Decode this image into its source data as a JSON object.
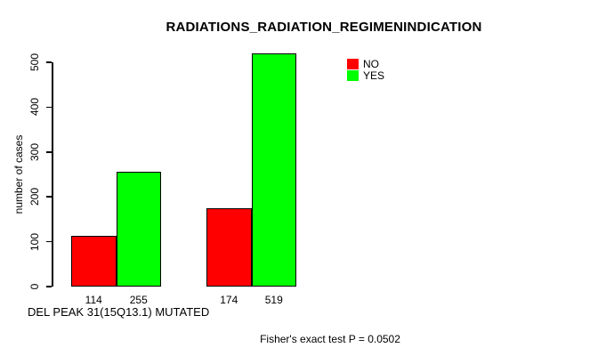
{
  "title": "RADIATIONS_RADIATION_REGIMENINDICATION",
  "xlabel": "DEL PEAK 31(15Q13.1) MUTATED",
  "footnote": "Fisher's exact test P = 0.0502",
  "chart_data": {
    "type": "bar",
    "title": "RADIATIONS_RADIATION_REGIMENINDICATION",
    "ylabel": "number of cases",
    "xlabel": "DEL PEAK 31(15Q13.1) MUTATED",
    "annotation": "Fisher's exact test P = 0.0502",
    "series": [
      {
        "name": "NO",
        "color": "#ff0000",
        "values": [
          114,
          174
        ]
      },
      {
        "name": "YES",
        "color": "#00ff00",
        "values": [
          255,
          519
        ]
      }
    ],
    "groups": 2,
    "values_shown_under_bars": [
      114,
      255,
      174,
      519
    ],
    "yticks": [
      0,
      100,
      200,
      300,
      400,
      500
    ],
    "ylim": [
      0,
      520
    ],
    "grid": false,
    "legend_position": "top-right"
  },
  "colors": {
    "bar_no": "#ff0000",
    "bar_yes": "#00ff00",
    "axis": "#000000",
    "text": "#000000",
    "background": "#ffffff"
  }
}
